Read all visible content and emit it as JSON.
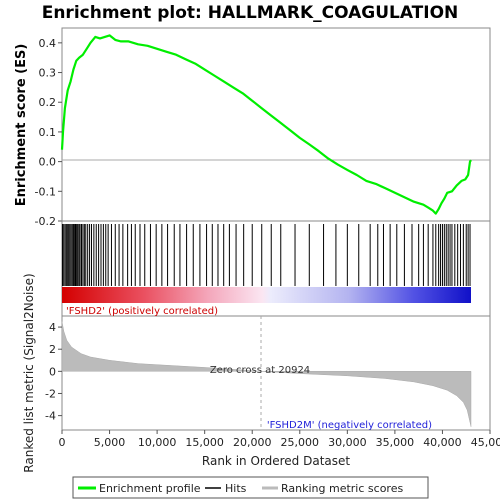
{
  "chart_data": {
    "type": "line",
    "title": "Enrichment plot: HALLMARK_COAGULATION",
    "xlabel": "Rank in Ordered Dataset",
    "xlim": [
      0,
      45000
    ],
    "x_ticks": [
      0,
      5000,
      10000,
      15000,
      20000,
      25000,
      30000,
      35000,
      40000,
      45000
    ],
    "x_tick_labels": [
      "0",
      "5,000",
      "10,000",
      "15,000",
      "20,000",
      "25,000",
      "30,000",
      "35,000",
      "40,000",
      "45,000"
    ],
    "n_genes": 43000,
    "colors": {
      "enrichment": "#00ee00",
      "hits": "#000000",
      "metric_fill": "#bbbbbb",
      "positive_label": "#cc0000",
      "negative_label": "#1f1fd8",
      "zero_line": "#aaaaaa"
    },
    "enrichment": {
      "ylabel": "Enrichment score (ES)",
      "ylim": [
        -0.2,
        0.45
      ],
      "y_ticks": [
        -0.2,
        -0.1,
        0.0,
        0.1,
        0.2,
        0.3,
        0.4
      ],
      "y_tick_labels": [
        "-0.2",
        "-0.1",
        "0.0",
        "0.1",
        "0.2",
        "0.3",
        "0.4"
      ],
      "series": [
        {
          "name": "Enrichment profile",
          "x": [
            0,
            100,
            300,
            600,
            900,
            1200,
            1500,
            1800,
            2200,
            2600,
            3000,
            3500,
            4000,
            4500,
            5000,
            5600,
            6200,
            7000,
            8000,
            9000,
            10000,
            11000,
            12000,
            13000,
            14000,
            15000,
            16000,
            17000,
            18000,
            19000,
            20000,
            21000,
            22000,
            23000,
            24000,
            25000,
            26000,
            27000,
            28000,
            29000,
            30000,
            31000,
            32000,
            33000,
            34000,
            35000,
            36000,
            37000,
            38000,
            38500,
            39000,
            39300,
            39600,
            39900,
            40200,
            40500,
            41000,
            41500,
            42000,
            42400,
            42700,
            42900,
            43000
          ],
          "y": [
            0.04,
            0.1,
            0.18,
            0.24,
            0.27,
            0.31,
            0.34,
            0.35,
            0.36,
            0.38,
            0.4,
            0.42,
            0.415,
            0.42,
            0.425,
            0.41,
            0.405,
            0.405,
            0.395,
            0.39,
            0.38,
            0.37,
            0.36,
            0.345,
            0.33,
            0.31,
            0.29,
            0.27,
            0.25,
            0.23,
            0.205,
            0.18,
            0.155,
            0.13,
            0.105,
            0.08,
            0.058,
            0.035,
            0.01,
            -0.01,
            -0.028,
            -0.045,
            -0.065,
            -0.075,
            -0.09,
            -0.105,
            -0.12,
            -0.135,
            -0.145,
            -0.155,
            -0.165,
            -0.175,
            -0.16,
            -0.14,
            -0.125,
            -0.105,
            -0.1,
            -0.08,
            -0.065,
            -0.06,
            -0.045,
            0.0,
            0.005
          ]
        }
      ]
    },
    "hits": {
      "legend": "Hits",
      "positions": [
        50,
        180,
        320,
        450,
        560,
        700,
        820,
        950,
        1080,
        1200,
        1300,
        1420,
        1540,
        1650,
        1780,
        1900,
        2050,
        2200,
        2350,
        2500,
        2700,
        2900,
        3100,
        3350,
        3600,
        3850,
        4100,
        4350,
        4600,
        4850,
        5200,
        5600,
        6000,
        6400,
        6900,
        7300,
        7700,
        8200,
        8700,
        9300,
        9900,
        10500,
        11100,
        11800,
        12400,
        13100,
        13800,
        14500,
        15200,
        15800,
        16400,
        17000,
        17600,
        18300,
        19100,
        20000,
        21000,
        22000,
        23000,
        24500,
        26000,
        27500,
        28800,
        30000,
        31200,
        32400,
        33200,
        33800,
        34500,
        35200,
        36000,
        36800,
        37500,
        38000,
        38500,
        39000,
        39300,
        39600,
        39800,
        40000,
        40200,
        40400,
        40600,
        40800,
        41000,
        41300,
        41600,
        41900,
        42200,
        42500,
        42700,
        42900
      ]
    },
    "metric": {
      "ylabel": "Ranked list metric (Signal2Noise)",
      "ylim": [
        -5.3,
        5.0
      ],
      "y_ticks": [
        -4,
        -2,
        0,
        2,
        4
      ],
      "y_tick_labels": [
        "-4",
        "-2",
        "0",
        "2",
        "4"
      ],
      "legend": "Ranking metric scores",
      "x": [
        0,
        200,
        500,
        1000,
        2000,
        3000,
        5000,
        8000,
        12000,
        16000,
        20924,
        25000,
        30000,
        34000,
        37000,
        39000,
        40500,
        41500,
        42200,
        42600,
        42900,
        43000
      ],
      "y": [
        4.5,
        3.6,
        2.8,
        2.2,
        1.6,
        1.3,
        1.0,
        0.7,
        0.5,
        0.3,
        0.0,
        -0.2,
        -0.4,
        -0.65,
        -0.95,
        -1.3,
        -1.7,
        -2.2,
        -2.8,
        -3.5,
        -4.6,
        -5.0
      ],
      "zero_cross": 20924,
      "zero_cross_label": "Zero cross at 20924",
      "positive_label": "'FSHD2' (positively correlated)",
      "negative_label": "'FSHD2M' (negatively correlated)"
    },
    "legend": [
      "Enrichment profile",
      "Hits",
      "Ranking metric scores"
    ]
  }
}
